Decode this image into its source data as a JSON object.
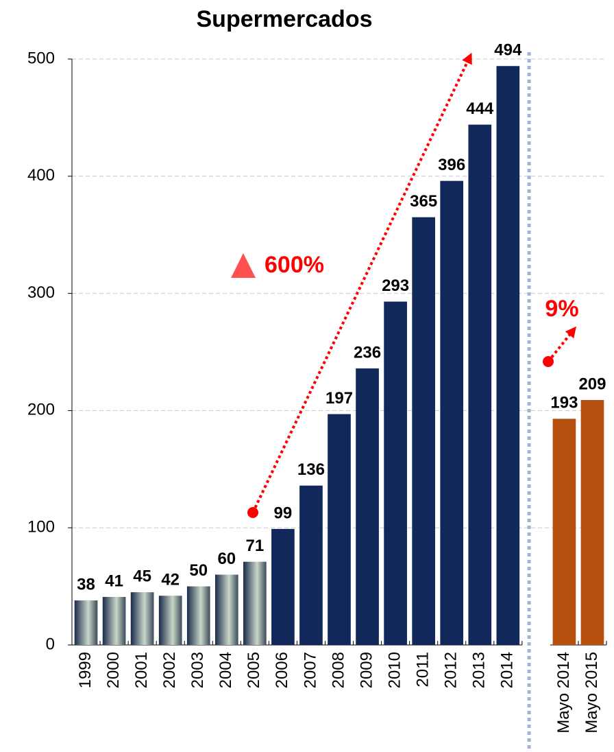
{
  "chart_data": {
    "type": "bar",
    "title": "Supermercados",
    "categories": [
      "1999",
      "2000",
      "2001",
      "2002",
      "2003",
      "2004",
      "2005",
      "2006",
      "2007",
      "2008",
      "2009",
      "2010",
      "2011",
      "2012",
      "2013",
      "2014",
      null,
      "Mayo 2014",
      "Mayo 2015"
    ],
    "values": [
      38,
      41,
      45,
      42,
      50,
      60,
      71,
      99,
      136,
      197,
      236,
      293,
      365,
      396,
      444,
      494,
      null,
      193,
      209
    ],
    "colors": [
      "#c9d6c8",
      "#c9d6c8",
      "#c9d6c8",
      "#c9d6c8",
      "#c9d6c8",
      "#c9d6c8",
      "#c9d6c8",
      "#12285a",
      "#12285a",
      "#12285a",
      "#12285a",
      "#12285a",
      "#12285a",
      "#12285a",
      "#12285a",
      "#12285a",
      null,
      "#b5500f",
      "#b5500f"
    ],
    "ylim": [
      0,
      500
    ],
    "yticks": [
      0,
      100,
      200,
      300,
      400,
      500
    ],
    "grid": true,
    "annotations": [
      "600%",
      "9%"
    ]
  }
}
